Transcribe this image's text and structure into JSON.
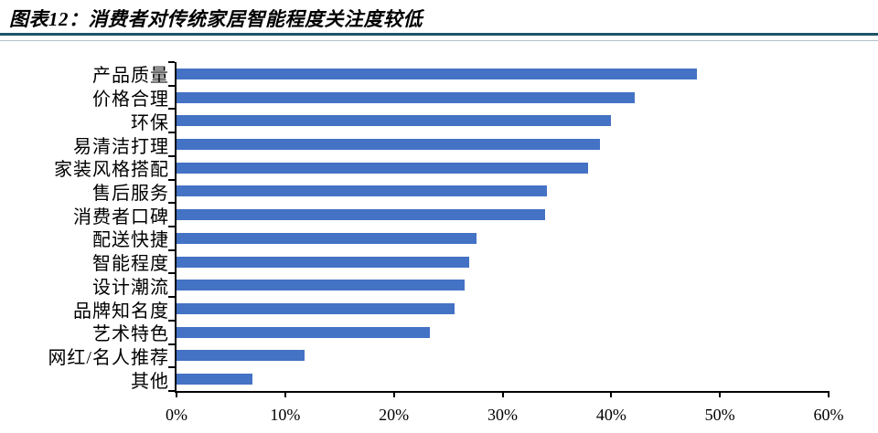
{
  "header": {
    "title": "图表12：消费者对传统家居智能程度关注度较低",
    "underline_color": "#1d5468"
  },
  "chart_data": {
    "type": "bar",
    "orientation": "horizontal",
    "title": "图表12：消费者对传统家居智能程度关注度较低",
    "xlabel": "",
    "ylabel": "",
    "categories": [
      "产品质量",
      "价格合理",
      "环保",
      "易清洁打理",
      "家装风格搭配",
      "售后服务",
      "消费者口碑",
      "配送快捷",
      "智能程度",
      "设计潮流",
      "品牌知名度",
      "艺术特色",
      "网红/名人推荐",
      "其他"
    ],
    "values": [
      47.9,
      42.2,
      40.0,
      39.0,
      37.9,
      34.1,
      33.9,
      27.6,
      26.9,
      26.5,
      25.6,
      23.3,
      11.8,
      7.0
    ],
    "unit": "%",
    "xlim": [
      0,
      60
    ],
    "x_tick_labels": [
      "0%",
      "10%",
      "20%",
      "30%",
      "40%",
      "50%",
      "60%"
    ],
    "grid": false,
    "legend": null,
    "bar_color": "#4472C4",
    "axis_color": "#000000"
  }
}
